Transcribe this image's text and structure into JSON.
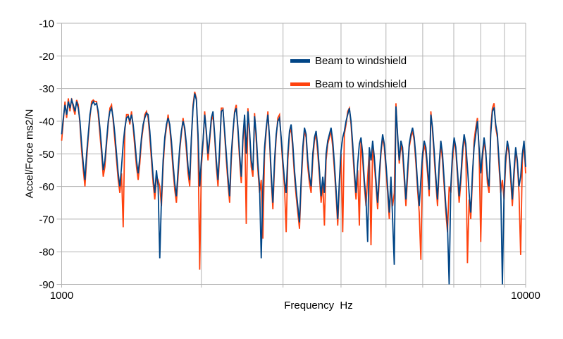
{
  "figure": {
    "background": "#ffffff"
  },
  "chart_data": {
    "type": "line",
    "xlabel": "Frequency  Hz",
    "ylabel": "Accel/Force ms2/N",
    "x_scale": "log",
    "xlim": [
      1000,
      10000
    ],
    "ylim": [
      -90,
      -10
    ],
    "grid": true,
    "grid_color": "#b3b3b3",
    "x_gridlines": [
      1000,
      2000,
      3000,
      4000,
      5000,
      6000,
      7000,
      8000,
      9000,
      10000
    ],
    "x_tick_labels": [
      {
        "value": 1000,
        "label": "1000"
      },
      {
        "value": 10000,
        "label": "10000"
      }
    ],
    "y_ticks": [
      -10,
      -20,
      -30,
      -40,
      -50,
      -60,
      -70,
      -80,
      -90
    ],
    "legend_position": "top-center-inside",
    "x_points": {
      "start": 1000,
      "end": 10000,
      "spacing": "log",
      "count": 280
    },
    "series": [
      {
        "name": "Beam to windshield",
        "color": "#004586",
        "draw_order": 2,
        "values": [
          -44,
          -39,
          -35,
          -38,
          -34,
          -36,
          -33.5,
          -35,
          -37,
          -34,
          -36,
          -40,
          -47,
          -53,
          -58,
          -50,
          -44,
          -38,
          -35,
          -34,
          -35,
          -34.5,
          -37,
          -42,
          -48,
          -55,
          -52,
          -46,
          -40,
          -37,
          -36,
          -39,
          -44,
          -50,
          -56,
          -60,
          -54,
          -47,
          -42,
          -39,
          -38.5,
          -40,
          -38,
          -41,
          -46,
          -52,
          -56,
          -51,
          -45,
          -41,
          -39,
          -37.5,
          -38,
          -43,
          -50,
          -57,
          -62,
          -55,
          -60,
          -82,
          -64,
          -52,
          -45,
          -41,
          -39,
          -41,
          -46,
          -53,
          -59,
          -63,
          -55,
          -48,
          -43,
          -40,
          -42,
          -47,
          -54,
          -58,
          -45,
          -36,
          -31.5,
          -33.5,
          -44,
          -60,
          -52,
          -46,
          -38,
          -43,
          -50,
          -45,
          -39,
          -37,
          -44,
          -52,
          -58,
          -48,
          -37,
          -36.5,
          -43,
          -50,
          -57,
          -63,
          -50,
          -43,
          -37.5,
          -36,
          -42,
          -50,
          -57,
          -45,
          -38,
          -50,
          -37,
          -43,
          -52,
          -55,
          -38.5,
          -44,
          -53,
          -60,
          -82,
          -60,
          -48,
          -42,
          -38,
          -45,
          -56,
          -65,
          -52,
          -44,
          -40,
          -39,
          -45,
          -52,
          -58,
          -62,
          -50,
          -43,
          -41,
          -47,
          -55,
          -61,
          -66,
          -71,
          -58,
          -48,
          -42,
          -44,
          -52,
          -57,
          -60,
          -50,
          -45,
          -43,
          -48,
          -55,
          -63,
          -57,
          -62,
          -50,
          -46,
          -44,
          -42,
          -46,
          -53,
          -61,
          -70,
          -58,
          -49,
          -45,
          -43,
          -40,
          -38,
          -36,
          -40,
          -47,
          -55,
          -62,
          -53,
          -47,
          -45,
          -50,
          -58,
          -64,
          -77,
          -48,
          -52,
          -46,
          -51,
          -58,
          -65,
          -56,
          -49,
          -44,
          -47,
          -53,
          -60,
          -68,
          -57,
          -70,
          -84,
          -35.5,
          -44,
          -52,
          -46,
          -48,
          -56,
          -64,
          -55,
          -47,
          -44,
          -42,
          -45,
          -51,
          -59,
          -66,
          -58,
          -50,
          -46,
          -48,
          -54,
          -61,
          -38,
          -42,
          -49,
          -57,
          -64,
          -53,
          -46,
          -50,
          -58,
          -66,
          -72,
          -90,
          -60,
          -50,
          -45,
          -48,
          -55,
          -63,
          -57,
          -49,
          -44,
          -47,
          -54,
          -62,
          -68,
          -56,
          -48,
          -44,
          -40,
          -48,
          -56,
          -50,
          -45,
          -49,
          -57,
          -60,
          -44,
          -37,
          -35.8,
          -41,
          -44,
          -52,
          -60,
          -90,
          -62,
          -51,
          -46,
          -49,
          -56,
          -64,
          -55,
          -48,
          -52,
          -60,
          -57,
          -50,
          -46,
          -54
        ]
      },
      {
        "name": "Beam to windshield",
        "color": "#ff420e",
        "draw_order": 1,
        "values": [
          -46,
          -40,
          -34,
          -39,
          -33,
          -37,
          -33,
          -36,
          -38,
          -33.5,
          -35,
          -41,
          -49,
          -55,
          -60,
          -52,
          -45,
          -39,
          -34,
          -33.5,
          -34,
          -34,
          -38,
          -44,
          -50,
          -57,
          -54,
          -47,
          -41,
          -36,
          -35,
          -40,
          -46,
          -52,
          -58,
          -62,
          -56,
          -72.5,
          -43,
          -38,
          -38,
          -41,
          -37,
          -42,
          -48,
          -54,
          -58,
          -53,
          -46,
          -42,
          -38,
          -37,
          -39,
          -45,
          -52,
          -59,
          -64,
          -57,
          -58,
          -60,
          -66,
          -54,
          -46,
          -42,
          -38,
          -42,
          -48,
          -55,
          -61,
          -65,
          -57,
          -49,
          -44,
          -39,
          -43,
          -49,
          -56,
          -60,
          -46,
          -35,
          -31,
          -33,
          -46,
          -85.5,
          -54,
          -47,
          -37,
          -44,
          -52,
          -46,
          -40,
          -38,
          -45,
          -54,
          -60,
          -50,
          -36,
          -36,
          -44,
          -52,
          -59,
          -65,
          -52,
          -44,
          -37,
          -35,
          -43,
          -52,
          -59,
          -46,
          -39,
          -71.5,
          -36,
          -44,
          -54,
          -57,
          -37.5,
          -46,
          -55,
          -62,
          -58,
          -76,
          -50,
          -43,
          -37,
          -46,
          -58,
          -67,
          -54,
          -45,
          -39,
          -38,
          -46,
          -54,
          -60,
          -74,
          -52,
          -44,
          -42,
          -49,
          -57,
          -63,
          -68,
          -73,
          -60,
          -50,
          -43,
          -45,
          -54,
          -59,
          -62,
          -52,
          -46,
          -44,
          -50,
          -57,
          -65,
          -59,
          -72,
          -52,
          -47,
          -45,
          -43,
          -48,
          -55,
          -63,
          -72,
          -60,
          -50,
          -74,
          -44,
          -41,
          -37,
          -36,
          -41,
          -49,
          -57,
          -64,
          -55,
          -72,
          -46,
          -52,
          -60,
          -66,
          -57,
          -49,
          -78,
          -47,
          -53,
          -60,
          -67,
          -58,
          -50,
          -45,
          -48,
          -55,
          -62,
          -70,
          -59,
          -66,
          -62,
          -34.5,
          -45,
          -53,
          -47,
          -50,
          -58,
          -66,
          -57,
          -48,
          -45,
          -43,
          -46,
          -53,
          -61,
          -68,
          -82.5,
          -52,
          -47,
          -50,
          -56,
          -63,
          -37,
          -43,
          -51,
          -59,
          -66,
          -55,
          -47,
          -52,
          -60,
          -68,
          -74,
          -60,
          -62,
          -52,
          -46,
          -49,
          -57,
          -65,
          -59,
          -51,
          -45,
          -48,
          -83.5,
          -64,
          -70,
          -58,
          -46,
          -42,
          -39,
          -49,
          -77,
          -52,
          -46,
          -50,
          -59,
          -62,
          -42,
          -36,
          -34.5,
          -42,
          -45,
          -54,
          -62,
          -58,
          -64,
          -53,
          -47,
          -50,
          -58,
          -66,
          -57,
          -49,
          -53,
          -62,
          -81,
          -52,
          -47,
          -56
        ]
      }
    ]
  }
}
